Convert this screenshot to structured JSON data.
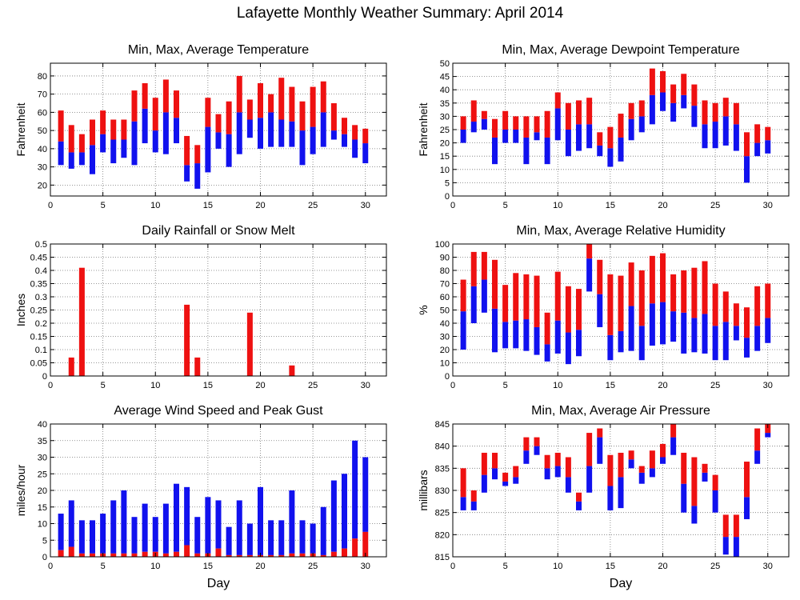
{
  "page_title": "Lafayette Monthly Weather Summary: April 2014",
  "colors": {
    "max_bar": "#ee1111",
    "min_bar": "#1111ee",
    "grid": "#777777",
    "axis": "#000000"
  },
  "chart_data": [
    {
      "id": "temperature",
      "type": "bar",
      "title": "Min, Max, Average Temperature",
      "xlabel": "",
      "ylabel": "Fahrenheit",
      "xlim": [
        0,
        32
      ],
      "ylim": [
        14,
        87
      ],
      "xticks": [
        0,
        5,
        10,
        15,
        20,
        25,
        30
      ],
      "yticks": [
        20,
        30,
        40,
        50,
        60,
        70,
        80
      ],
      "grid": true,
      "style": "min-avg-max",
      "x": [
        1,
        2,
        3,
        4,
        5,
        6,
        7,
        8,
        9,
        10,
        11,
        12,
        13,
        14,
        15,
        16,
        17,
        18,
        19,
        20,
        21,
        22,
        23,
        24,
        25,
        26,
        27,
        28,
        29,
        30
      ],
      "series": [
        {
          "values": [
            31,
            29,
            31,
            26,
            38,
            32,
            35,
            31,
            43,
            38,
            37,
            43,
            22,
            18,
            27,
            40,
            30,
            37,
            46,
            40,
            41,
            41,
            41,
            31,
            37,
            41,
            45,
            41,
            35,
            32
          ]
        },
        {
          "values": [
            44,
            38,
            38,
            42,
            48,
            45,
            45,
            55,
            62,
            50,
            60,
            57,
            31,
            32,
            52,
            49,
            48,
            60,
            56,
            57,
            60,
            56,
            55,
            50,
            52,
            60,
            50,
            48,
            45,
            43
          ]
        },
        {
          "values": [
            61,
            53,
            48,
            56,
            61,
            56,
            56,
            72,
            76,
            68,
            78,
            72,
            47,
            42,
            68,
            59,
            66,
            80,
            67,
            76,
            70,
            79,
            74,
            66,
            74,
            77,
            65,
            57,
            53,
            51
          ]
        }
      ]
    },
    {
      "id": "dewpoint",
      "type": "bar",
      "title": "Min, Max, Average Dewpoint Temperature",
      "xlabel": "",
      "ylabel": "Fahrenheit",
      "xlim": [
        0,
        32
      ],
      "ylim": [
        0,
        50
      ],
      "xticks": [
        0,
        5,
        10,
        15,
        20,
        25,
        30
      ],
      "yticks": [
        0,
        5,
        10,
        15,
        20,
        25,
        30,
        35,
        40,
        45,
        50
      ],
      "grid": true,
      "style": "min-avg-max",
      "x": [
        1,
        2,
        3,
        4,
        5,
        6,
        7,
        8,
        9,
        10,
        11,
        12,
        13,
        14,
        15,
        16,
        17,
        18,
        19,
        20,
        21,
        22,
        23,
        24,
        25,
        26,
        27,
        28,
        29,
        30
      ],
      "series": [
        {
          "values": [
            20,
            24,
            25,
            12,
            20,
            20,
            12,
            21,
            12,
            21,
            15,
            17,
            18,
            15,
            11,
            13,
            21,
            24,
            27,
            32,
            28,
            33,
            26,
            18,
            18,
            19,
            17,
            5,
            15,
            16
          ]
        },
        {
          "values": [
            25,
            28,
            29,
            22,
            25,
            25,
            22,
            24,
            22,
            33,
            25,
            27,
            27,
            19,
            18,
            22,
            29,
            30,
            38,
            39,
            35,
            38,
            34,
            27,
            28,
            30,
            27,
            15,
            20,
            21
          ]
        },
        {
          "values": [
            30,
            36,
            32,
            29,
            32,
            30,
            30,
            30,
            32,
            39,
            35,
            36,
            37,
            24,
            26,
            31,
            35,
            36,
            48,
            47,
            42,
            46,
            42,
            36,
            35,
            37,
            35,
            24,
            27,
            26
          ]
        }
      ]
    },
    {
      "id": "rainfall",
      "type": "bar",
      "title": "Daily Rainfall or Snow Melt",
      "xlabel": "",
      "ylabel": "Inches",
      "xlim": [
        0,
        32
      ],
      "ylim": [
        0,
        0.5
      ],
      "xticks": [
        0,
        5,
        10,
        15,
        20,
        25,
        30
      ],
      "yticks": [
        0,
        0.05,
        0.1,
        0.15,
        0.2,
        0.25,
        0.3,
        0.35,
        0.4,
        0.45,
        0.5
      ],
      "grid": true,
      "style": "single",
      "x": [
        1,
        2,
        3,
        4,
        5,
        6,
        7,
        8,
        9,
        10,
        11,
        12,
        13,
        14,
        15,
        16,
        17,
        18,
        19,
        20,
        21,
        22,
        23,
        24,
        25,
        26,
        27,
        28,
        29,
        30
      ],
      "series": [
        {
          "values": [
            0,
            0.07,
            0.41,
            0,
            0,
            0,
            0,
            0,
            0,
            0,
            0,
            0,
            0.27,
            0.07,
            0,
            0,
            0,
            0,
            0.24,
            0,
            0,
            0,
            0.04,
            0,
            0,
            0,
            0,
            0,
            0,
            0
          ]
        }
      ]
    },
    {
      "id": "humidity",
      "type": "bar",
      "title": "Min, Max, Average Relative Humidity",
      "xlabel": "",
      "ylabel": "%",
      "xlim": [
        0,
        32
      ],
      "ylim": [
        0,
        100
      ],
      "xticks": [
        0,
        5,
        10,
        15,
        20,
        25,
        30
      ],
      "yticks": [
        0,
        10,
        20,
        30,
        40,
        50,
        60,
        70,
        80,
        90,
        100
      ],
      "grid": true,
      "style": "min-avg-max",
      "x": [
        1,
        2,
        3,
        4,
        5,
        6,
        7,
        8,
        9,
        10,
        11,
        12,
        13,
        14,
        15,
        16,
        17,
        18,
        19,
        20,
        21,
        22,
        23,
        24,
        25,
        26,
        27,
        28,
        29,
        30
      ],
      "series": [
        {
          "values": [
            20,
            40,
            48,
            18,
            21,
            21,
            19,
            16,
            11,
            17,
            9,
            15,
            64,
            37,
            12,
            18,
            19,
            12,
            23,
            24,
            26,
            17,
            18,
            17,
            12,
            12,
            27,
            14,
            19,
            25
          ]
        },
        {
          "values": [
            49,
            68,
            73,
            51,
            41,
            42,
            43,
            37,
            24,
            42,
            33,
            35,
            89,
            62,
            31,
            34,
            53,
            38,
            55,
            56,
            49,
            48,
            44,
            47,
            38,
            41,
            38,
            29,
            38,
            44
          ]
        },
        {
          "values": [
            73,
            94,
            94,
            88,
            69,
            78,
            77,
            76,
            48,
            79,
            68,
            66,
            100,
            88,
            77,
            76,
            86,
            80,
            91,
            93,
            77,
            80,
            82,
            87,
            70,
            64,
            55,
            52,
            68,
            70
          ]
        }
      ]
    },
    {
      "id": "wind",
      "type": "bar",
      "title": "Average Wind Speed and Peak Gust",
      "xlabel": "Day",
      "ylabel": "miles/hour",
      "xlim": [
        0,
        32
      ],
      "ylim": [
        0,
        40
      ],
      "xticks": [
        0,
        5,
        10,
        15,
        20,
        25,
        30
      ],
      "yticks": [
        0,
        5,
        10,
        15,
        20,
        25,
        30,
        35,
        40
      ],
      "grid": true,
      "style": "avg-peak",
      "x": [
        1,
        2,
        3,
        4,
        5,
        6,
        7,
        8,
        9,
        10,
        11,
        12,
        13,
        14,
        15,
        16,
        17,
        18,
        19,
        20,
        21,
        22,
        23,
        24,
        25,
        26,
        27,
        28,
        29,
        30
      ],
      "series": [
        {
          "values": [
            2,
            3,
            1,
            1,
            1,
            1,
            1,
            1,
            1.5,
            1.5,
            1,
            1.5,
            3.5,
            1,
            1,
            2.5,
            0.5,
            0.5,
            0.5,
            0.5,
            0.5,
            0.5,
            1,
            1,
            1,
            0.5,
            1.5,
            2.5,
            5.5,
            7.5
          ]
        },
        {
          "values": [
            13,
            17,
            11,
            11,
            13,
            17,
            20,
            12,
            16,
            12,
            16,
            22,
            21,
            12,
            18,
            17,
            9,
            17,
            10,
            21,
            11,
            11,
            20,
            11,
            10,
            15,
            23,
            25,
            35,
            30
          ]
        }
      ]
    },
    {
      "id": "pressure",
      "type": "bar",
      "title": "Min, Max, Average Air Pressure",
      "xlabel": "Day",
      "ylabel": "millibars",
      "xlim": [
        0,
        32
      ],
      "ylim": [
        815,
        845
      ],
      "xticks": [
        0,
        5,
        10,
        15,
        20,
        25,
        30
      ],
      "yticks": [
        815,
        820,
        825,
        830,
        835,
        840,
        845
      ],
      "grid": true,
      "style": "min-avg-max",
      "x": [
        1,
        2,
        3,
        4,
        5,
        6,
        7,
        8,
        9,
        10,
        11,
        12,
        13,
        14,
        15,
        16,
        17,
        18,
        19,
        20,
        21,
        22,
        23,
        24,
        25,
        26,
        27,
        28,
        29,
        30
      ],
      "series": [
        {
          "values": [
            825.5,
            825.5,
            829.5,
            832.5,
            831,
            831.5,
            836,
            838,
            832.5,
            833,
            829.5,
            825.5,
            829.5,
            836,
            825.5,
            826,
            835,
            831.5,
            833,
            836,
            838,
            825,
            822.5,
            832,
            825,
            815.5,
            815,
            823.5,
            836,
            842
          ]
        },
        {
          "values": [
            828.5,
            827.5,
            833.5,
            835,
            832,
            833,
            839,
            840,
            835,
            835.5,
            833,
            827.5,
            835.5,
            842,
            831,
            833,
            837,
            834,
            835,
            837.5,
            842,
            831.5,
            826.5,
            834,
            830,
            819.5,
            819.5,
            828.5,
            839,
            843
          ]
        },
        {
          "values": [
            835,
            830,
            838.5,
            838.5,
            834,
            835.5,
            842,
            842,
            838,
            838.5,
            837.5,
            829.5,
            843,
            844,
            838,
            838.5,
            839,
            835.5,
            839,
            840.5,
            845,
            838.5,
            837.5,
            836,
            833.5,
            824.5,
            824.5,
            836.5,
            844,
            845
          ]
        }
      ]
    }
  ]
}
